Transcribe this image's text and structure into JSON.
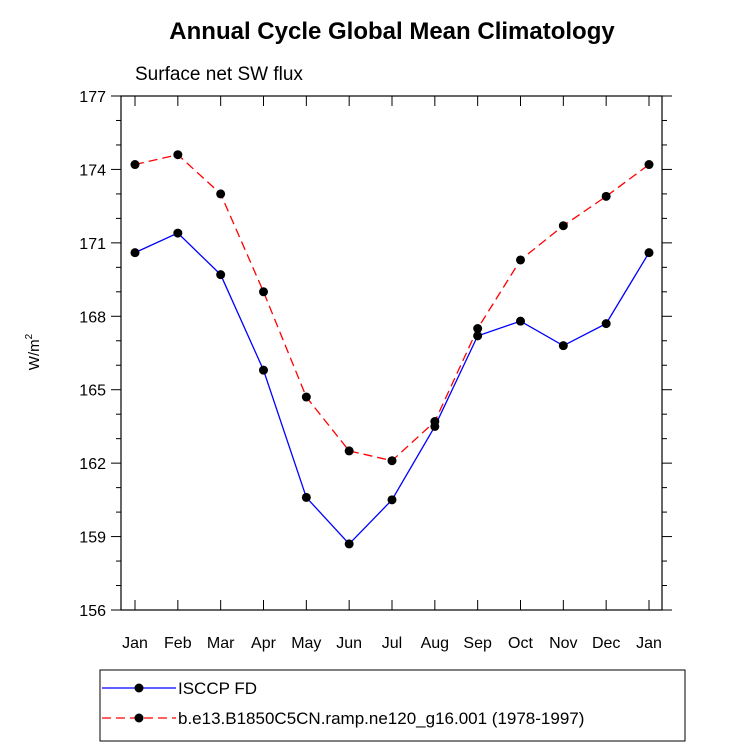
{
  "chart_data": {
    "type": "line",
    "title": "Annual Cycle Global Mean Climatology",
    "subtitle": "Surface net SW flux",
    "ylabel": "W/m",
    "ylabel_superscript": "2",
    "xlabel": "",
    "categories": [
      "Jan",
      "Feb",
      "Mar",
      "Apr",
      "May",
      "Jun",
      "Jul",
      "Aug",
      "Sep",
      "Oct",
      "Nov",
      "Dec",
      "Jan"
    ],
    "ylim": [
      156,
      177
    ],
    "yticks": [
      156,
      159,
      162,
      165,
      168,
      171,
      174,
      177
    ],
    "grid": false,
    "legend_position": "bottom",
    "series": [
      {
        "name": "ISCCP FD",
        "color": "#0000ff",
        "line_style": "solid",
        "marker": "filled-circle",
        "values": [
          170.6,
          171.4,
          169.7,
          165.8,
          160.6,
          158.7,
          160.5,
          163.5,
          167.2,
          167.8,
          166.8,
          167.7,
          170.6
        ]
      },
      {
        "name": "b.e13.B1850C5CN.ramp.ne120_g16.001 (1978-1997)",
        "color": "#ff0000",
        "line_style": "dashed",
        "marker": "filled-circle",
        "values": [
          174.2,
          174.6,
          173.0,
          169.0,
          164.7,
          162.5,
          162.1,
          163.7,
          167.5,
          170.3,
          171.7,
          172.9,
          174.2
        ]
      }
    ]
  }
}
